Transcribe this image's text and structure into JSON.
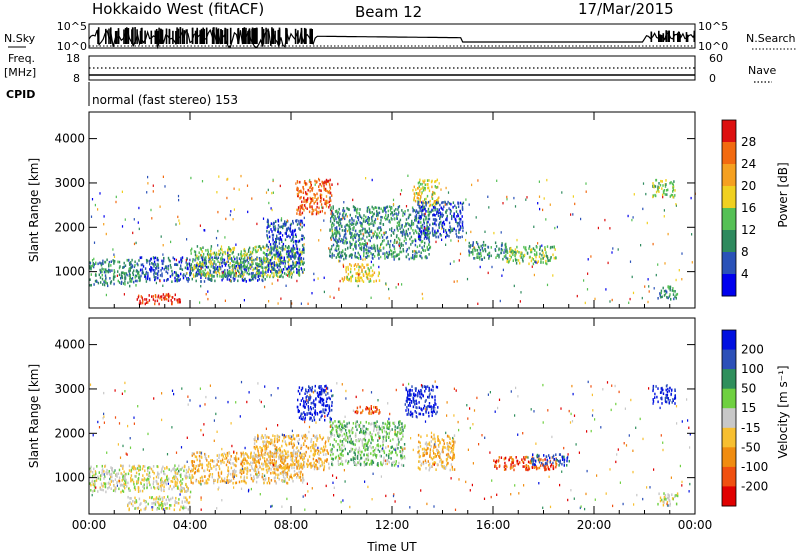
{
  "header": {
    "station": "Hokkaido West (fitACF)",
    "beam": "Beam 12",
    "date": "17/Mar/2015"
  },
  "top_panels": {
    "nsky_label": "N.Sky",
    "nsky_ticks": [
      "10^5",
      "10^0"
    ],
    "nsearch_label": "N.Search",
    "nsearch_ticks": [
      "10^5",
      "10^0"
    ],
    "freq_label": "Freq.",
    "freq_unit": "[MHz]",
    "freq_ticks": [
      "18",
      "8"
    ],
    "nave_label": "Nave",
    "nave_ticks": [
      "60",
      "0"
    ],
    "cpid_label": "CPID",
    "cpid_text": "normal (fast stereo) 153"
  },
  "colors": {
    "power": [
      "#0000ee",
      "#2a52b8",
      "#2e8a5e",
      "#55c055",
      "#f0d020",
      "#f5a020",
      "#f26a10",
      "#dd1010"
    ],
    "velocity": [
      "#e00000",
      "#f05010",
      "#f08c10",
      "#f7bf30",
      "#c8c8c8",
      "#6fd040",
      "#2f8f5c",
      "#2c50b8",
      "#0010e0"
    ]
  },
  "chart_data": [
    {
      "type": "heatmap",
      "parameter": "Power",
      "ylabel": "Slant Range [km]",
      "ylim": [
        180,
        4600
      ],
      "yticks": [
        "1000",
        "2000",
        "3000",
        "4000"
      ],
      "xticks": [
        "00:00",
        "04:00",
        "08:00",
        "12:00",
        "16:00",
        "20:00",
        "00:00"
      ],
      "xlim_hours": [
        0,
        24
      ],
      "colorbar_label": "Power [dB]",
      "colorbar_ticks": [
        "4",
        "8",
        "12",
        "16",
        "20",
        "24",
        "28"
      ],
      "scatter_regions": [
        {
          "t": [
            0.0,
            2.0
          ],
          "r": [
            700,
            1300
          ],
          "level": 2
        },
        {
          "t": [
            2.0,
            7.0
          ],
          "r": [
            800,
            1350
          ],
          "level": 1
        },
        {
          "t": [
            4.0,
            8.5
          ],
          "r": [
            900,
            1600
          ],
          "level": 3
        },
        {
          "t": [
            1.8,
            3.6
          ],
          "r": [
            300,
            520
          ],
          "level": 7
        },
        {
          "t": [
            7.0,
            8.5
          ],
          "r": [
            1000,
            2200
          ],
          "level": 1
        },
        {
          "t": [
            8.2,
            9.6
          ],
          "r": [
            2300,
            3100
          ],
          "level": 6
        },
        {
          "t": [
            9.5,
            13.5
          ],
          "r": [
            1300,
            2500
          ],
          "level": 2
        },
        {
          "t": [
            10.0,
            11.5
          ],
          "r": [
            800,
            1200
          ],
          "level": 4
        },
        {
          "t": [
            12.8,
            13.8
          ],
          "r": [
            2500,
            3100
          ],
          "level": 4
        },
        {
          "t": [
            13.0,
            14.8
          ],
          "r": [
            1800,
            2600
          ],
          "level": 1
        },
        {
          "t": [
            15.0,
            16.5
          ],
          "r": [
            1300,
            1700
          ],
          "level": 2
        },
        {
          "t": [
            16.5,
            18.5
          ],
          "r": [
            1200,
            1600
          ],
          "level": 3
        },
        {
          "t": [
            22.5,
            23.3
          ],
          "r": [
            400,
            700
          ],
          "level": 2
        },
        {
          "t": [
            22.3,
            23.2
          ],
          "r": [
            2700,
            3100
          ],
          "level": 3
        }
      ]
    },
    {
      "type": "heatmap",
      "parameter": "Velocity",
      "ylabel": "Slant Range [km]",
      "ylim": [
        180,
        4600
      ],
      "yticks": [
        "1000",
        "2000",
        "3000",
        "4000"
      ],
      "xticks": [
        "00:00",
        "04:00",
        "08:00",
        "12:00",
        "16:00",
        "20:00",
        "00:00"
      ],
      "xlabel": "Time UT",
      "xlim_hours": [
        0,
        24
      ],
      "colorbar_label": "Velocity [m s⁻¹]",
      "colorbar_ticks": [
        "200",
        "100",
        "50",
        "15",
        "-15",
        "-50",
        "-100",
        "-200"
      ],
      "scatter_regions": [
        {
          "t": [
            0.0,
            4.0
          ],
          "r": [
            700,
            1300
          ],
          "level": 4
        },
        {
          "t": [
            1.5,
            4.0
          ],
          "r": [
            300,
            600
          ],
          "level": 4
        },
        {
          "t": [
            4.0,
            8.5
          ],
          "r": [
            900,
            1600
          ],
          "level": 3
        },
        {
          "t": [
            6.5,
            9.5
          ],
          "r": [
            1200,
            2000
          ],
          "level": 3
        },
        {
          "t": [
            8.2,
            9.6
          ],
          "r": [
            2300,
            3100
          ],
          "level": 8
        },
        {
          "t": [
            9.5,
            12.5
          ],
          "r": [
            1300,
            2300
          ],
          "level": 5
        },
        {
          "t": [
            10.5,
            11.5
          ],
          "r": [
            2450,
            2650
          ],
          "level": 1
        },
        {
          "t": [
            12.5,
            13.8
          ],
          "r": [
            2400,
            3100
          ],
          "level": 8
        },
        {
          "t": [
            13.0,
            14.5
          ],
          "r": [
            1200,
            2000
          ],
          "level": 3
        },
        {
          "t": [
            16.0,
            18.5
          ],
          "r": [
            1200,
            1500
          ],
          "level": 1
        },
        {
          "t": [
            17.5,
            19.0
          ],
          "r": [
            1300,
            1550
          ],
          "level": 7
        },
        {
          "t": [
            22.5,
            23.3
          ],
          "r": [
            400,
            700
          ],
          "level": 4
        },
        {
          "t": [
            22.3,
            23.2
          ],
          "r": [
            2700,
            3100
          ],
          "level": 8
        }
      ]
    }
  ]
}
